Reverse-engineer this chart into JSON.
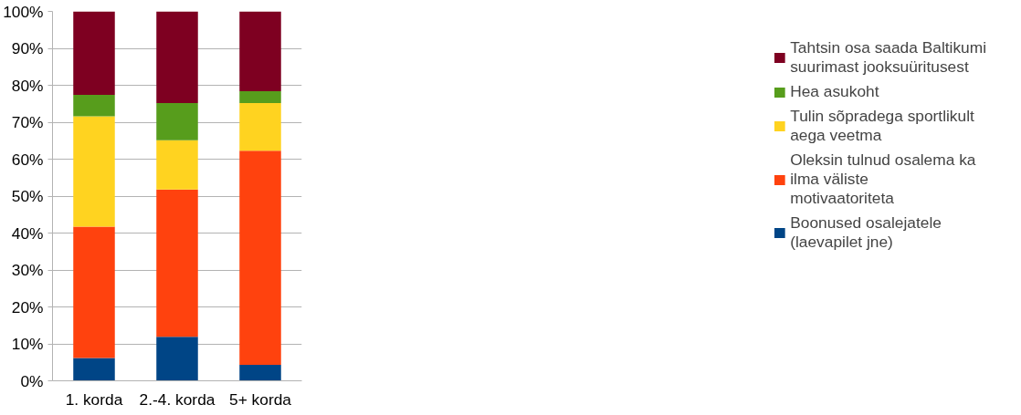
{
  "chart_data": {
    "type": "bar",
    "stacked": true,
    "categories": [
      "1. korda",
      "2.-4. korda",
      "5+ korda"
    ],
    "series": [
      {
        "name": "Boonused osalejatele (laevapilet jne)",
        "color": "#004586",
        "values": [
          6.2,
          11.9,
          4.3
        ]
      },
      {
        "name": "Oleksin tulnud osalema ka ilma väliste motivaatoriteta",
        "color": "#ff420e",
        "values": [
          35.5,
          39.9,
          58.0
        ]
      },
      {
        "name": "Tulin sõpradega sportlikult aega veetma",
        "color": "#ffd320",
        "values": [
          29.9,
          13.3,
          12.9
        ]
      },
      {
        "name": "Hea asukoht",
        "color": "#579d1c",
        "values": [
          5.8,
          10.1,
          3.2
        ]
      },
      {
        "name": "Tahtsin osa saada Baltikumi suurimast jooksuüritusest",
        "color": "#7e0021",
        "values": [
          22.6,
          24.8,
          21.6
        ]
      }
    ],
    "ylim": [
      0,
      100
    ],
    "yticks": [
      {
        "value": 0,
        "label": "0%"
      },
      {
        "value": 10,
        "label": "10%"
      },
      {
        "value": 20,
        "label": "20%"
      },
      {
        "value": 30,
        "label": "30%"
      },
      {
        "value": 40,
        "label": "40%"
      },
      {
        "value": 50,
        "label": "50%"
      },
      {
        "value": 60,
        "label": "60%"
      },
      {
        "value": 70,
        "label": "70%"
      },
      {
        "value": 80,
        "label": "80%"
      },
      {
        "value": 90,
        "label": "90%"
      },
      {
        "value": 100,
        "label": "100%"
      }
    ],
    "grid": "y",
    "legend": "right"
  }
}
